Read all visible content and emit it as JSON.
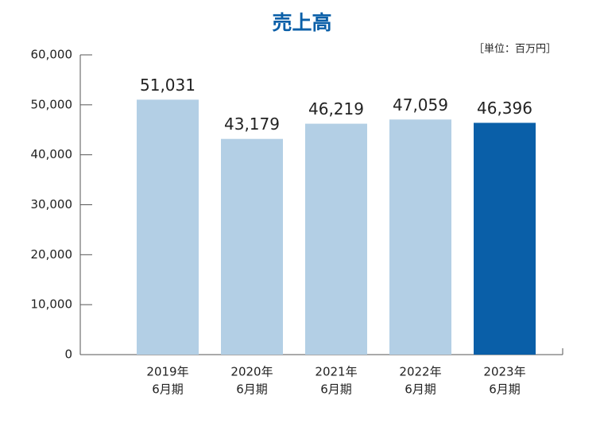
{
  "chart_data": {
    "type": "bar",
    "title": "売上高",
    "unit": "［単位：百万円］",
    "categories": [
      [
        "2019年",
        "6月期"
      ],
      [
        "2020年",
        "6月期"
      ],
      [
        "2021年",
        "6月期"
      ],
      [
        "2022年",
        "6月期"
      ],
      [
        "2023年",
        "6月期"
      ]
    ],
    "values": [
      51031,
      43179,
      46219,
      47059,
      46396
    ],
    "value_labels": [
      "51,031",
      "43,179",
      "46,219",
      "47,059",
      "46,396"
    ],
    "colors": [
      "#b3cfe5",
      "#b3cfe5",
      "#b3cfe5",
      "#b3cfe5",
      "#0a5fa8"
    ],
    "ylim": [
      0,
      60000
    ],
    "yticks": [
      0,
      {
        "value": 10000,
        "label": "10,000"
      },
      {
        "value": 20000,
        "label": "20,000"
      },
      {
        "value": 30000,
        "label": "30,000"
      },
      {
        "value": 40000,
        "label": "40,000"
      },
      {
        "value": 50000,
        "label": "50,000"
      },
      {
        "value": 60000,
        "label": "60,000"
      }
    ],
    "grid": false
  }
}
